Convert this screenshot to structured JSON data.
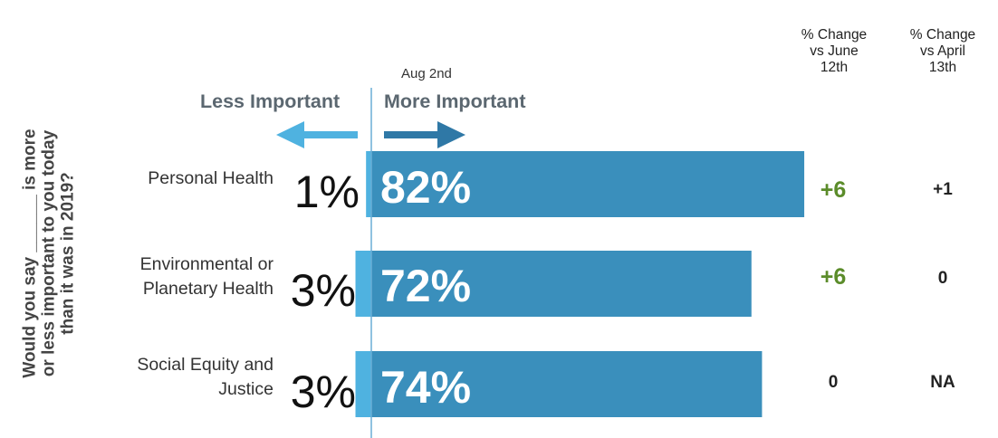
{
  "chart_data": {
    "type": "bar",
    "orientation": "horizontal-diverging",
    "question": "Would you say ______ is more\nor less important to you today\nthan it was in 2019?",
    "date_label": "Aug 2nd",
    "direction_labels": {
      "less": "Less Important",
      "more": "More Important"
    },
    "column_headers": [
      "% Change\nvs June\n12th",
      "% Change\nvs April\n13th"
    ],
    "categories": [
      "Personal Health",
      "Environmental or\nPlanetary Health",
      "Social Equity and\nJustice"
    ],
    "series": [
      {
        "name": "Less Important",
        "values": [
          1,
          3,
          3
        ],
        "labels": [
          "1%",
          "3%",
          "3%"
        ]
      },
      {
        "name": "More Important",
        "values": [
          82,
          72,
          74
        ],
        "labels": [
          "82%",
          "72%",
          "74%"
        ]
      }
    ],
    "change_vs_june_12": [
      "+6",
      "+6",
      "0"
    ],
    "change_vs_april_13": [
      "+1",
      "0",
      "NA"
    ],
    "colors": {
      "more_bar": "#3a8fbc",
      "less_bar": "#4fb2e0",
      "less_arrow": "#4fb2e0",
      "more_arrow": "#2f78a6",
      "positive_change": "#5b8c2a",
      "neutral_change": "#222222",
      "divider": "#6aaed6"
    }
  }
}
